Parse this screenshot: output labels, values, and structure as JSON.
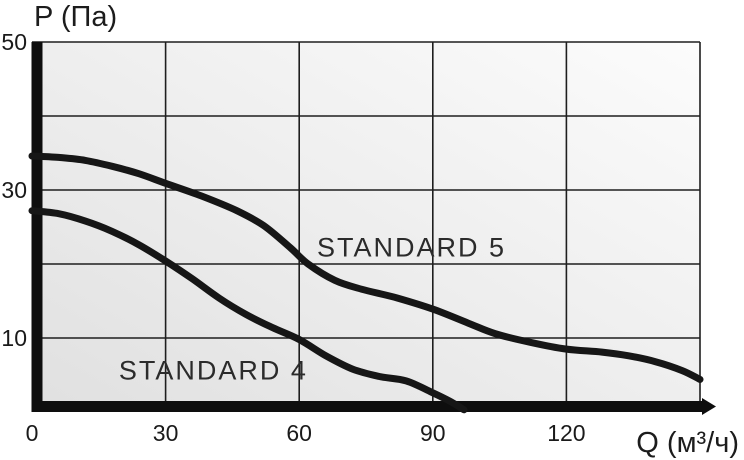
{
  "chart_data": {
    "type": "line",
    "title": "",
    "xlabel": "Q (м³/ч)",
    "ylabel": "P (Па)",
    "xlim": [
      0,
      150
    ],
    "ylim": [
      0,
      50
    ],
    "x_ticks": [
      0,
      30,
      60,
      90,
      120
    ],
    "y_ticks": [
      10,
      30,
      50
    ],
    "x_gridlines": [
      30,
      60,
      90,
      120,
      150
    ],
    "y_gridlines": [
      10,
      20,
      30,
      40,
      50
    ],
    "grid": true,
    "legend": "inline-annotations",
    "series": [
      {
        "name": "STANDARD 5",
        "points": [
          [
            0,
            34.6
          ],
          [
            6,
            34.4
          ],
          [
            12,
            34
          ],
          [
            18,
            33.2
          ],
          [
            24,
            32.2
          ],
          [
            30,
            30.9
          ],
          [
            38,
            29.2
          ],
          [
            46,
            27.2
          ],
          [
            52,
            25.2
          ],
          [
            58,
            22.2
          ],
          [
            62,
            20
          ],
          [
            68,
            17.8
          ],
          [
            74,
            16.6
          ],
          [
            82,
            15.4
          ],
          [
            90,
            13.9
          ],
          [
            98,
            12
          ],
          [
            104,
            10.6
          ],
          [
            112,
            9.4
          ],
          [
            120,
            8.5
          ],
          [
            128,
            8.1
          ],
          [
            134,
            7.6
          ],
          [
            140,
            6.8
          ],
          [
            146,
            5.6
          ],
          [
            150,
            4.4
          ]
        ]
      },
      {
        "name": "STANDARD 4",
        "points": [
          [
            0,
            27.2
          ],
          [
            6,
            26.8
          ],
          [
            12,
            25.8
          ],
          [
            18,
            24.4
          ],
          [
            24,
            22.6
          ],
          [
            30,
            20.4
          ],
          [
            36,
            18
          ],
          [
            42,
            15.4
          ],
          [
            48,
            13.2
          ],
          [
            54,
            11.4
          ],
          [
            60,
            9.8
          ],
          [
            66,
            7.6
          ],
          [
            72,
            5.8
          ],
          [
            78,
            4.8
          ],
          [
            84,
            4.2
          ],
          [
            90,
            2.6
          ],
          [
            94,
            1.4
          ],
          [
            97,
            0.3
          ]
        ]
      }
    ],
    "annotations": [
      {
        "text": "STANDARD 5",
        "x": 64,
        "y": 21
      },
      {
        "text": "STANDARD 4",
        "x": 19.5,
        "y": 4.4
      }
    ]
  },
  "colors": {
    "curve": "#161616",
    "grid": "#1e1e1e",
    "axis": "#0e0e0e",
    "text": "#1c1c1c",
    "plot_bg_from": "#fcfcfc",
    "plot_bg_to": "#e0e0e0"
  }
}
